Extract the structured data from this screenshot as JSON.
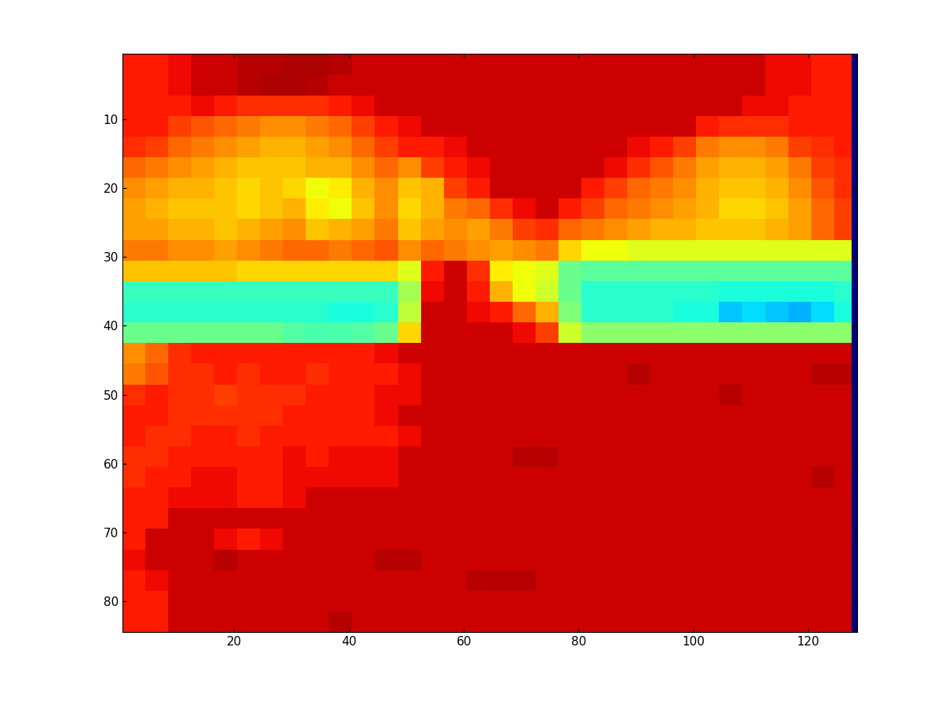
{
  "chart_data": {
    "type": "heatmap",
    "color": "jet",
    "clim": [
      0,
      100
    ],
    "xlim": [
      0.5,
      128.5
    ],
    "ylim": [
      84.5,
      0.5
    ],
    "xticks": [
      20,
      40,
      60,
      80,
      100,
      120
    ],
    "yticks": [
      10,
      20,
      30,
      40,
      50,
      60,
      70,
      80
    ],
    "x_edges": [
      0.5,
      4.5,
      8.5,
      12.5,
      16.5,
      20.5,
      24.5,
      28.5,
      32.5,
      36.5,
      40.5,
      44.5,
      48.5,
      52.5,
      56.5,
      60.5,
      64.5,
      68.5,
      72.5,
      76.5,
      80.5,
      84.5,
      88.5,
      92.5,
      96.5,
      100.5,
      104.5,
      108.5,
      112.5,
      116.5,
      120.5,
      124.5,
      127.5,
      128.5
    ],
    "y_edges": [
      0.5,
      3.5,
      6.5,
      9.5,
      12.5,
      15.5,
      18.5,
      21.5,
      24.5,
      27.5,
      30.5,
      33.5,
      36.5,
      39.5,
      42.5,
      45.5,
      48.5,
      51.5,
      54.5,
      57.5,
      60.5,
      63.5,
      66.5,
      69.5,
      72.5,
      75.5,
      78.5,
      81.5,
      84.5
    ],
    "cells": [
      [
        88,
        88,
        90,
        93,
        93,
        95,
        95,
        96,
        96,
        95,
        93,
        93,
        93,
        93,
        93,
        93,
        93,
        93,
        93,
        93,
        93,
        93,
        93,
        93,
        93,
        93,
        93,
        93,
        90,
        90,
        88,
        88,
        0
      ],
      [
        88,
        88,
        90,
        93,
        93,
        95,
        96,
        96,
        95,
        93,
        93,
        93,
        93,
        93,
        93,
        93,
        93,
        93,
        93,
        93,
        93,
        93,
        93,
        93,
        93,
        93,
        93,
        93,
        90,
        90,
        88,
        88,
        0
      ],
      [
        88,
        88,
        88,
        90,
        88,
        86,
        86,
        86,
        86,
        88,
        90,
        93,
        93,
        93,
        93,
        93,
        93,
        93,
        93,
        93,
        93,
        93,
        93,
        93,
        93,
        93,
        93,
        90,
        90,
        88,
        88,
        88,
        0
      ],
      [
        88,
        88,
        84,
        82,
        80,
        78,
        76,
        76,
        78,
        80,
        84,
        88,
        90,
        93,
        93,
        93,
        93,
        93,
        93,
        93,
        93,
        93,
        93,
        93,
        93,
        88,
        86,
        86,
        86,
        88,
        88,
        88,
        0
      ],
      [
        86,
        84,
        80,
        78,
        76,
        74,
        72,
        72,
        74,
        76,
        80,
        84,
        88,
        88,
        90,
        93,
        93,
        93,
        93,
        93,
        93,
        93,
        90,
        88,
        84,
        78,
        76,
        76,
        78,
        84,
        86,
        88,
        0
      ],
      [
        80,
        78,
        76,
        74,
        72,
        70,
        70,
        70,
        72,
        72,
        76,
        80,
        76,
        84,
        88,
        90,
        93,
        93,
        93,
        93,
        93,
        90,
        86,
        82,
        78,
        74,
        72,
        72,
        74,
        78,
        84,
        86,
        0
      ],
      [
        76,
        74,
        72,
        72,
        70,
        68,
        70,
        68,
        64,
        66,
        72,
        76,
        70,
        72,
        84,
        88,
        93,
        93,
        93,
        93,
        88,
        84,
        80,
        78,
        76,
        72,
        70,
        70,
        72,
        76,
        82,
        86,
        0
      ],
      [
        74,
        72,
        70,
        70,
        70,
        68,
        70,
        72,
        66,
        64,
        70,
        76,
        68,
        72,
        78,
        80,
        86,
        90,
        93,
        88,
        84,
        80,
        78,
        76,
        74,
        72,
        68,
        68,
        70,
        74,
        80,
        84,
        0
      ],
      [
        74,
        74,
        72,
        72,
        70,
        72,
        74,
        76,
        70,
        72,
        74,
        78,
        70,
        74,
        76,
        74,
        78,
        84,
        86,
        80,
        78,
        76,
        74,
        72,
        72,
        70,
        70,
        70,
        72,
        74,
        80,
        84,
        0
      ],
      [
        78,
        78,
        76,
        76,
        74,
        76,
        78,
        80,
        80,
        78,
        80,
        82,
        76,
        80,
        78,
        76,
        74,
        76,
        78,
        68,
        64,
        64,
        62,
        62,
        62,
        62,
        62,
        62,
        62,
        62,
        62,
        62,
        0
      ],
      [
        70,
        70,
        70,
        70,
        70,
        68,
        68,
        68,
        68,
        68,
        68,
        68,
        62,
        88,
        93,
        86,
        66,
        64,
        62,
        48,
        46,
        46,
        46,
        46,
        46,
        46,
        46,
        46,
        46,
        46,
        46,
        46,
        0
      ],
      [
        42,
        42,
        42,
        42,
        42,
        42,
        42,
        42,
        42,
        42,
        42,
        42,
        55,
        90,
        93,
        88,
        72,
        64,
        60,
        48,
        40,
        40,
        40,
        40,
        40,
        40,
        38,
        38,
        38,
        38,
        38,
        40,
        0
      ],
      [
        40,
        40,
        40,
        40,
        40,
        40,
        40,
        40,
        40,
        38,
        38,
        40,
        58,
        93,
        93,
        90,
        88,
        80,
        72,
        50,
        40,
        40,
        40,
        40,
        38,
        38,
        32,
        34,
        32,
        30,
        34,
        38,
        0
      ],
      [
        48,
        48,
        48,
        48,
        48,
        48,
        48,
        45,
        44,
        44,
        45,
        48,
        68,
        93,
        93,
        93,
        93,
        90,
        84,
        60,
        52,
        52,
        52,
        52,
        52,
        52,
        52,
        52,
        52,
        52,
        52,
        52,
        0
      ],
      [
        76,
        80,
        86,
        88,
        88,
        88,
        88,
        88,
        88,
        88,
        88,
        90,
        93,
        93,
        93,
        93,
        93,
        93,
        93,
        93,
        93,
        93,
        93,
        93,
        93,
        93,
        93,
        93,
        93,
        93,
        93,
        93,
        0
      ],
      [
        78,
        82,
        86,
        86,
        88,
        86,
        88,
        88,
        86,
        88,
        88,
        88,
        90,
        93,
        93,
        93,
        93,
        93,
        93,
        93,
        93,
        93,
        95,
        93,
        93,
        93,
        93,
        93,
        93,
        93,
        95,
        95,
        0
      ],
      [
        86,
        88,
        86,
        86,
        84,
        86,
        86,
        86,
        88,
        88,
        88,
        90,
        90,
        93,
        93,
        93,
        93,
        93,
        93,
        93,
        93,
        93,
        93,
        93,
        93,
        93,
        95,
        93,
        93,
        93,
        93,
        93,
        0
      ],
      [
        88,
        88,
        86,
        86,
        86,
        86,
        86,
        88,
        88,
        88,
        88,
        90,
        93,
        93,
        93,
        93,
        93,
        93,
        93,
        93,
        93,
        93,
        93,
        93,
        93,
        93,
        93,
        93,
        93,
        93,
        93,
        93,
        0
      ],
      [
        88,
        86,
        86,
        88,
        88,
        86,
        88,
        88,
        88,
        88,
        88,
        88,
        90,
        93,
        93,
        93,
        93,
        93,
        93,
        93,
        93,
        93,
        93,
        93,
        93,
        93,
        93,
        93,
        93,
        93,
        93,
        93,
        0
      ],
      [
        86,
        86,
        88,
        88,
        88,
        88,
        88,
        90,
        88,
        90,
        90,
        90,
        93,
        93,
        93,
        93,
        93,
        95,
        95,
        93,
        93,
        93,
        93,
        93,
        93,
        93,
        93,
        93,
        93,
        93,
        93,
        93,
        0
      ],
      [
        86,
        88,
        88,
        90,
        90,
        88,
        88,
        90,
        90,
        90,
        90,
        90,
        93,
        93,
        93,
        93,
        93,
        93,
        93,
        93,
        93,
        93,
        93,
        93,
        93,
        93,
        93,
        93,
        93,
        93,
        95,
        93,
        0
      ],
      [
        88,
        88,
        90,
        90,
        90,
        88,
        88,
        90,
        93,
        93,
        93,
        93,
        93,
        93,
        93,
        93,
        93,
        93,
        93,
        93,
        93,
        93,
        93,
        93,
        93,
        93,
        93,
        93,
        93,
        93,
        93,
        93,
        0
      ],
      [
        88,
        88,
        93,
        93,
        93,
        93,
        93,
        93,
        93,
        93,
        93,
        93,
        93,
        93,
        93,
        93,
        93,
        93,
        93,
        93,
        93,
        93,
        93,
        93,
        93,
        93,
        93,
        93,
        93,
        93,
        93,
        93,
        0
      ],
      [
        88,
        93,
        93,
        93,
        90,
        88,
        90,
        93,
        93,
        93,
        93,
        93,
        93,
        93,
        93,
        93,
        93,
        93,
        93,
        93,
        93,
        93,
        93,
        93,
        93,
        93,
        93,
        93,
        93,
        93,
        93,
        93,
        0
      ],
      [
        90,
        93,
        93,
        93,
        95,
        93,
        93,
        93,
        93,
        93,
        93,
        95,
        95,
        93,
        93,
        93,
        93,
        93,
        93,
        93,
        93,
        93,
        93,
        93,
        93,
        93,
        93,
        93,
        93,
        93,
        93,
        93,
        0
      ],
      [
        88,
        90,
        93,
        93,
        93,
        93,
        93,
        93,
        93,
        93,
        93,
        93,
        93,
        93,
        93,
        95,
        95,
        95,
        93,
        93,
        93,
        93,
        93,
        93,
        93,
        93,
        93,
        93,
        93,
        93,
        93,
        93,
        0
      ],
      [
        88,
        88,
        93,
        93,
        93,
        93,
        93,
        93,
        93,
        93,
        93,
        93,
        93,
        93,
        93,
        93,
        93,
        93,
        93,
        93,
        93,
        93,
        93,
        93,
        93,
        93,
        93,
        93,
        93,
        93,
        93,
        93,
        0
      ],
      [
        88,
        88,
        93,
        93,
        93,
        93,
        93,
        93,
        93,
        95,
        93,
        93,
        93,
        93,
        93,
        93,
        93,
        93,
        93,
        93,
        93,
        93,
        93,
        93,
        93,
        93,
        93,
        93,
        93,
        93,
        93,
        93,
        0
      ]
    ]
  }
}
